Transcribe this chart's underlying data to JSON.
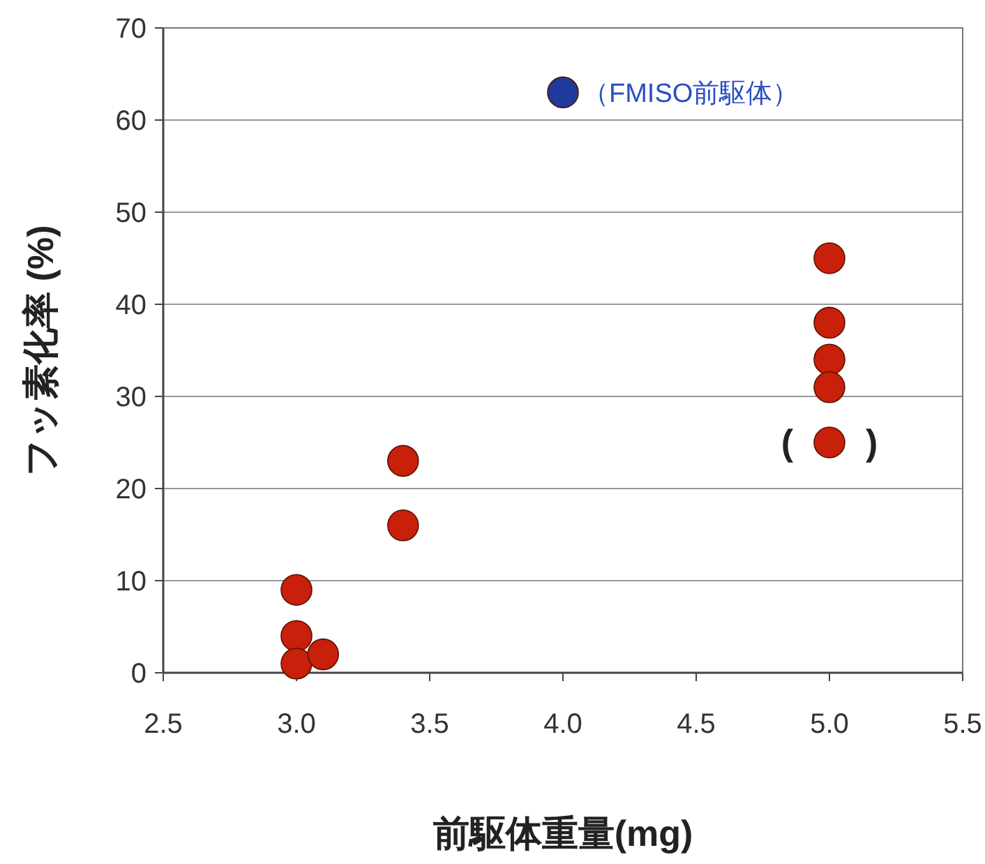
{
  "chart_data": {
    "type": "scatter",
    "xlabel": "前駆体重量(mg)",
    "ylabel": "フッ素化率 (%)",
    "xlim": [
      2.5,
      5.5
    ],
    "xticks": [
      {
        "value": 2.5,
        "label": "2.5"
      },
      {
        "value": 3,
        "label": "3.0"
      },
      {
        "value": 3.5,
        "label": "3.5"
      },
      {
        "value": 4,
        "label": "4.0"
      },
      {
        "value": 4.5,
        "label": "4.5"
      },
      {
        "value": 5,
        "label": "5.0"
      },
      {
        "value": 5.5,
        "label": "5.5"
      }
    ],
    "ylim": [
      0,
      70
    ],
    "yticks": [
      0,
      10,
      20,
      30,
      40,
      50,
      60,
      70
    ],
    "grid": "y",
    "marker": "circle",
    "series": [
      {
        "color": "#c8200a",
        "x": [
          3.0,
          3.0,
          3.0,
          3.1,
          3.4,
          3.4,
          5.0,
          5.0,
          5.0,
          5.0,
          5.0
        ],
        "values": [
          9,
          4,
          1,
          2,
          23,
          16,
          45,
          38,
          34,
          31,
          25
        ]
      },
      {
        "color": "#1f3a9a",
        "x": [
          4.0
        ],
        "values": [
          63
        ]
      }
    ],
    "annotations": [
      {
        "text": "（FMISO前駆体）",
        "x": 4.0,
        "y": 63
      },
      {
        "text": "(　　)",
        "x": 5.0,
        "y": 25
      }
    ]
  }
}
